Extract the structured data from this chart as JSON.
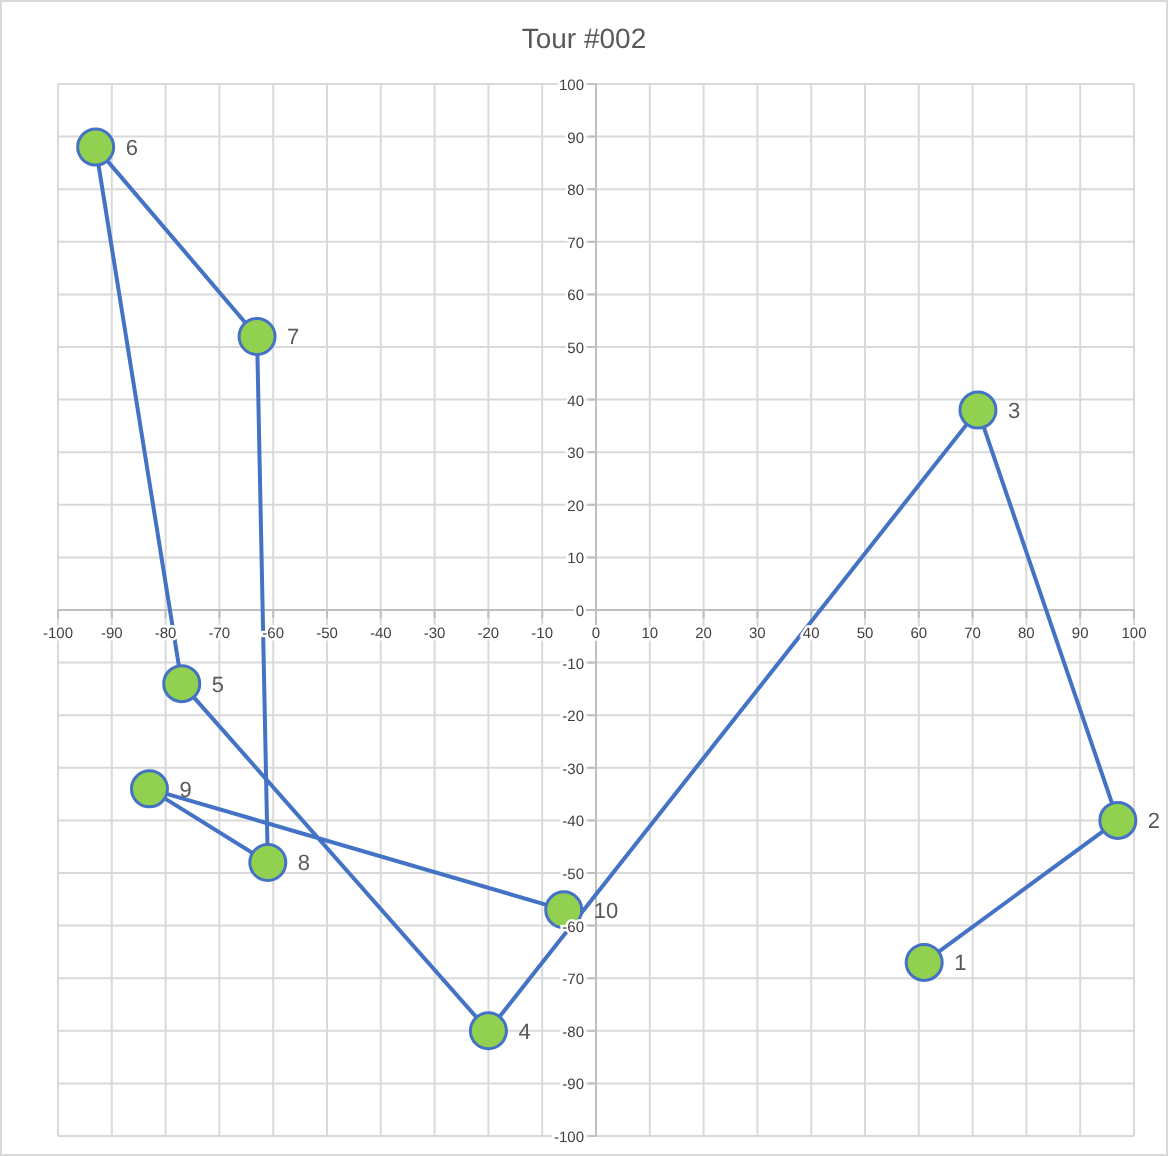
{
  "chart_data": {
    "type": "line",
    "title": "Tour #002",
    "x": [
      61,
      97,
      71,
      -20,
      -77,
      -93,
      -63,
      -61,
      -83,
      -6
    ],
    "series": [
      {
        "color": "#4472c4",
        "colors": [
          "#92d050",
          "#92d050",
          "#92d050",
          "#92d050",
          "#92d050",
          "#92d050",
          "#92d050",
          "#92d050",
          "#92d050",
          "#92d050"
        ],
        "values": [
          -67,
          -40,
          38,
          -80,
          -14,
          88,
          52,
          -48,
          -34,
          -57
        ]
      }
    ],
    "annotations": [
      {
        "text": "1",
        "x": 61,
        "y": -67
      },
      {
        "text": "2",
        "x": 97,
        "y": -40
      },
      {
        "text": "3",
        "x": 71,
        "y": 38
      },
      {
        "text": "4",
        "x": -20,
        "y": -80
      },
      {
        "text": "5",
        "x": -77,
        "y": -14
      },
      {
        "text": "6",
        "x": -93,
        "y": 88
      },
      {
        "text": "7",
        "x": -63,
        "y": 52
      },
      {
        "text": "8",
        "x": -61,
        "y": -48
      },
      {
        "text": "9",
        "x": -83,
        "y": -34
      },
      {
        "text": "10",
        "x": -6,
        "y": -57
      }
    ],
    "xlim": [
      -100,
      100
    ],
    "ylim": [
      -100,
      100
    ],
    "xticks": [
      -100,
      -90,
      -80,
      -70,
      -60,
      -50,
      -40,
      -30,
      -20,
      -10,
      0,
      10,
      20,
      30,
      40,
      50,
      60,
      70,
      80,
      90,
      100
    ],
    "yticks": [
      -100,
      -90,
      -80,
      -70,
      -60,
      -50,
      -40,
      -30,
      -20,
      -10,
      0,
      10,
      20,
      30,
      40,
      50,
      60,
      70,
      80,
      90,
      100
    ],
    "grid": true,
    "marker": "circle",
    "line_style": "solid"
  }
}
